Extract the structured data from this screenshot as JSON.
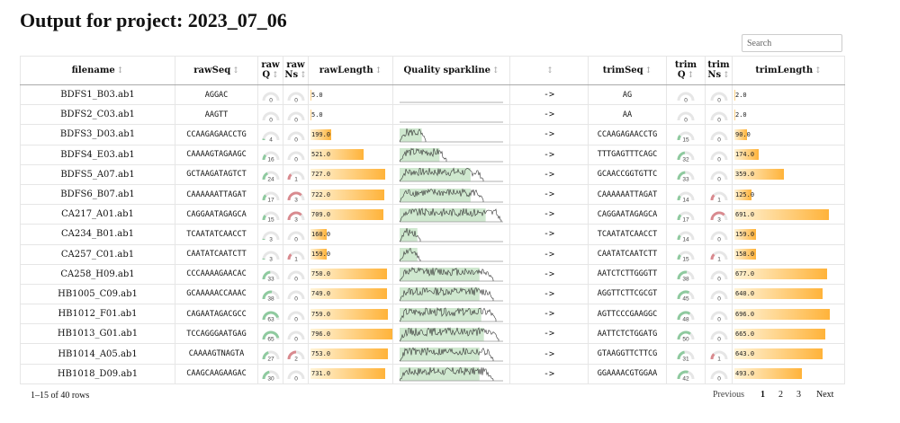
{
  "title": "Output for project: 2023_07_06",
  "search": {
    "placeholder": "Search"
  },
  "columns": {
    "filename": "filename",
    "rawSeq": "rawSeq",
    "rawQ": "raw\nQ",
    "rawNs": "raw\nNs",
    "rawLength": "rawLength",
    "sparkline": "Quality sparkline",
    "blank": "",
    "trimSeq": "trimSeq",
    "trimQ": "trim\nQ",
    "trimNs": "trim\nNs",
    "trimLength": "trimLength"
  },
  "sort_glyph": "↕",
  "arrow_text": "->",
  "gauge_max_q": 70,
  "gauge_max_ns": 4,
  "length_max": 800,
  "rows": [
    {
      "filename": "BDFS1_B03.ab1",
      "rawSeq": "AGGAC",
      "rawQ": "0",
      "rawNs": "0",
      "rawLength": "5.0",
      "spark": 0,
      "trimSeq": "AG",
      "trimQ": "0",
      "trimNs": "0",
      "trimLength": "2.0"
    },
    {
      "filename": "BDFS2_C03.ab1",
      "rawSeq": "AAGTT",
      "rawQ": "0",
      "rawNs": "0",
      "rawLength": "5.0",
      "spark": 0,
      "trimSeq": "AA",
      "trimQ": "0",
      "trimNs": "0",
      "trimLength": "2.0"
    },
    {
      "filename": "BDFS3_D03.ab1",
      "rawSeq": "CCAAGAGAACCTG",
      "rawQ": "4",
      "rawNs": "0",
      "rawLength": "199.0",
      "spark": 0.25,
      "trimSeq": "CCAAGAGAACCTG",
      "trimQ": "15",
      "trimNs": "0",
      "trimLength": "90.0"
    },
    {
      "filename": "BDFS4_E03.ab1",
      "rawSeq": "CAAAAGTAGAAGC",
      "rawQ": "16",
      "rawNs": "0",
      "rawLength": "521.0",
      "spark": 0.45,
      "trimSeq": "TTTGAGTTTCAGC",
      "trimQ": "32",
      "trimNs": "0",
      "trimLength": "174.0"
    },
    {
      "filename": "BDFS5_A07.ab1",
      "rawSeq": "GCTAAGATAGTCT",
      "rawQ": "24",
      "rawNs": "1",
      "rawLength": "727.0",
      "spark": 0.8,
      "trimSeq": "GCAACCGGTGTTC",
      "trimQ": "33",
      "trimNs": "0",
      "trimLength": "359.0"
    },
    {
      "filename": "BDFS6_B07.ab1",
      "rawSeq": "CAAAAAATTAGAT",
      "rawQ": "17",
      "rawNs": "3",
      "rawLength": "722.0",
      "spark": 0.8,
      "trimSeq": "CAAAAAATTAGAT",
      "trimQ": "14",
      "trimNs": "1",
      "trimLength": "125.0"
    },
    {
      "filename": "CA217_A01.ab1",
      "rawSeq": "CAGGAATAGAGCA",
      "rawQ": "15",
      "rawNs": "3",
      "rawLength": "709.0",
      "spark": 0.97,
      "trimSeq": "CAGGAATAGAGCA",
      "trimQ": "17",
      "trimNs": "3",
      "trimLength": "691.0"
    },
    {
      "filename": "CA234_B01.ab1",
      "rawSeq": "TCAATATCAACCT",
      "rawQ": "3",
      "rawNs": "0",
      "rawLength": "160.0",
      "spark": 0.2,
      "trimSeq": "TCAATATCAACCT",
      "trimQ": "14",
      "trimNs": "0",
      "trimLength": "159.0"
    },
    {
      "filename": "CA257_C01.ab1",
      "rawSeq": "CAATATCAATCTT",
      "rawQ": "3",
      "rawNs": "1",
      "rawLength": "159.0",
      "spark": 0.2,
      "trimSeq": "CAATATCAATCTT",
      "trimQ": "15",
      "trimNs": "1",
      "trimLength": "158.0"
    },
    {
      "filename": "CA258_H09.ab1",
      "rawSeq": "CCCAAAAGAACAC",
      "rawQ": "33",
      "rawNs": "0",
      "rawLength": "750.0",
      "spark": 0.9,
      "trimSeq": "AATCTCTTGGGTT",
      "trimQ": "38",
      "trimNs": "0",
      "trimLength": "677.0"
    },
    {
      "filename": "HB1005_C09.ab1",
      "rawSeq": "GCAAAAACCAAAC",
      "rawQ": "38",
      "rawNs": "0",
      "rawLength": "749.0",
      "spark": 0.9,
      "trimSeq": "AGGTTCTTCGCGT",
      "trimQ": "45",
      "trimNs": "0",
      "trimLength": "640.0"
    },
    {
      "filename": "HB1012_F01.ab1",
      "rawSeq": "CAGAATAGACGCC",
      "rawQ": "63",
      "rawNs": "0",
      "rawLength": "759.0",
      "spark": 0.92,
      "trimSeq": "AGTTCCCGAAGGC",
      "trimQ": "48",
      "trimNs": "0",
      "trimLength": "696.0"
    },
    {
      "filename": "HB1013_G01.ab1",
      "rawSeq": "TCCAGGGAATGAG",
      "rawQ": "65",
      "rawNs": "0",
      "rawLength": "796.0",
      "spark": 0.95,
      "trimSeq": "AATTCTCTGGATG",
      "trimQ": "50",
      "trimNs": "0",
      "trimLength": "665.0"
    },
    {
      "filename": "HB1014_A05.ab1",
      "rawSeq": "CAAAAGTNAGTA",
      "rawQ": "27",
      "rawNs": "2",
      "rawLength": "753.0",
      "spark": 0.9,
      "trimSeq": "GTAAGGTTCTTCG",
      "trimQ": "31",
      "trimNs": "1",
      "trimLength": "643.0"
    },
    {
      "filename": "HB1018_D09.ab1",
      "rawSeq": "CAAGCAAGAAGAC",
      "rawQ": "30",
      "rawNs": "0",
      "rawLength": "731.0",
      "spark": 0.9,
      "trimSeq": "GGAAAACGTGGAA",
      "trimQ": "42",
      "trimNs": "0",
      "trimLength": "493.0"
    }
  ],
  "footer": {
    "info": "1–15 of 40 rows",
    "previous": "Previous",
    "pages": [
      "1",
      "2",
      "3"
    ],
    "next": "Next"
  },
  "colors": {
    "q_good": "#8fca9f",
    "q_bad": "#d98a8f",
    "gauge_track": "#e6e6e6",
    "bar_end": "#ffb33a",
    "spark_bg": "#cfe8cf"
  }
}
